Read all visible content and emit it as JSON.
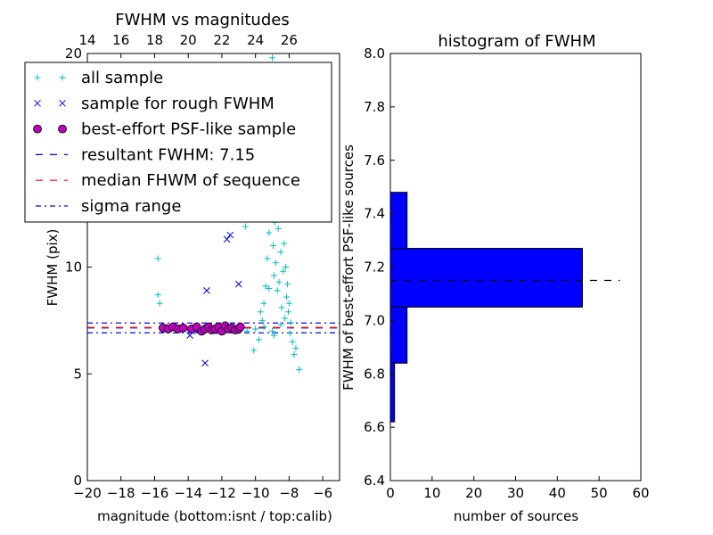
{
  "chart_data": [
    {
      "type": "scatter",
      "title": "FWHM vs magnitudes",
      "xlabel": "magnitude (bottom:isnt / top:calib)",
      "ylabel": "FWHM (pix)",
      "xlim": [
        -20,
        -5
      ],
      "ylim": [
        0,
        20
      ],
      "x_ticks": [
        -20,
        -18,
        -16,
        -14,
        -12,
        -10,
        -8,
        -6
      ],
      "x_tick_labels": [
        "−20",
        "−18",
        "−16",
        "−14",
        "−12",
        "−10",
        "−8",
        "−6"
      ],
      "y_ticks": [
        0,
        5,
        10,
        15,
        20
      ],
      "y_tick_labels": [
        "0",
        "5",
        "10",
        "15",
        "20"
      ],
      "top_axis": {
        "ticks": [
          14,
          16,
          18,
          20,
          22,
          24,
          26
        ],
        "tick_labels": [
          "14",
          "16",
          "18",
          "20",
          "22",
          "24",
          "26"
        ],
        "offset": 34
      },
      "grid": false,
      "legend_position": "upper-left",
      "legend": [
        {
          "label": "all sample",
          "marker": "plus",
          "color": "#00bfbf"
        },
        {
          "label": "sample for rough FWHM",
          "marker": "x",
          "color": "#0000ff"
        },
        {
          "label": "best-effort PSF-like sample",
          "marker": "circle",
          "color": "#bf00bf"
        },
        {
          "label": "resultant FWHM: 7.15",
          "marker": "dashed",
          "color": "#0000ff"
        },
        {
          "label": "median FHWM of sequence",
          "marker": "dashed",
          "color": "#ff0000"
        },
        {
          "label": "sigma range",
          "marker": "dashdot",
          "color": "#0000ff"
        }
      ],
      "hlines": [
        {
          "y": 7.15,
          "style": "dashed",
          "color": "#0000ff"
        },
        {
          "y": 7.17,
          "style": "dashed",
          "color": "#ff0000"
        },
        {
          "y": 7.38,
          "style": "dashdot",
          "color": "#0000ff"
        },
        {
          "y": 6.92,
          "style": "dashdot",
          "color": "#0000ff"
        }
      ],
      "series": [
        {
          "marker": "plus",
          "color": "#00bfbf",
          "points": [
            [
              -15.8,
              10.4
            ],
            [
              -15.8,
              8.7
            ],
            [
              -15.7,
              8.3
            ],
            [
              -15.3,
              7.2
            ],
            [
              -15.0,
              7.1
            ],
            [
              -14.8,
              7.2
            ],
            [
              -14.2,
              7.1
            ],
            [
              -13.5,
              7.0
            ],
            [
              -13.0,
              7.1
            ],
            [
              -12.5,
              7.0
            ],
            [
              -12.0,
              7.1
            ],
            [
              -11.5,
              7.2
            ],
            [
              -11.0,
              7.0
            ],
            [
              -10.5,
              7.0
            ],
            [
              -10.0,
              7.1
            ],
            [
              -9.5,
              7.2
            ],
            [
              -9.0,
              7.0
            ],
            [
              -10.1,
              6.1
            ],
            [
              -9.8,
              6.6
            ],
            [
              -9.6,
              7.5
            ],
            [
              -9.5,
              8.3
            ],
            [
              -9.4,
              9.1
            ],
            [
              -9.3,
              10.4
            ],
            [
              -9.2,
              11.6
            ],
            [
              -9.1,
              12.8
            ],
            [
              -9.0,
              13.6
            ],
            [
              -8.95,
              11.0
            ],
            [
              -8.9,
              9.6
            ],
            [
              -8.85,
              12.1
            ],
            [
              -8.8,
              10.2
            ],
            [
              -8.75,
              14.5
            ],
            [
              -8.7,
              8.9
            ],
            [
              -8.65,
              11.8
            ],
            [
              -8.6,
              9.3
            ],
            [
              -8.55,
              13.0
            ],
            [
              -8.5,
              10.7
            ],
            [
              -8.45,
              8.1
            ],
            [
              -8.4,
              12.4
            ],
            [
              -8.35,
              9.8
            ],
            [
              -8.3,
              11.1
            ],
            [
              -8.25,
              7.6
            ],
            [
              -8.2,
              10.0
            ],
            [
              -8.15,
              8.6
            ],
            [
              -8.1,
              9.2
            ],
            [
              -8.05,
              7.9
            ],
            [
              -8.0,
              8.3
            ],
            [
              -7.95,
              6.9
            ],
            [
              -7.9,
              7.4
            ],
            [
              -7.8,
              6.5
            ],
            [
              -7.7,
              5.9
            ],
            [
              -7.6,
              6.2
            ],
            [
              -7.4,
              5.2
            ],
            [
              -8.6,
              16.2
            ],
            [
              -8.8,
              15.4
            ],
            [
              -9.1,
              17.5
            ],
            [
              -8.4,
              16.9
            ],
            [
              -9.0,
              19.8
            ],
            [
              -8.9,
              18.3
            ],
            [
              -9.4,
              14.1
            ],
            [
              -8.3,
              13.3
            ],
            [
              -8.7,
              12.9
            ],
            [
              -9.2,
              9.0
            ],
            [
              -8.5,
              7.3
            ],
            [
              -8.9,
              6.8
            ],
            [
              -9.7,
              7.9
            ],
            [
              -10.4,
              14.9
            ],
            [
              -10.6,
              11.9
            ],
            [
              -11.0,
              12.4
            ],
            [
              -8.05,
              12.6
            ],
            [
              -8.15,
              14.2
            ],
            [
              -8.35,
              15.1
            ]
          ]
        },
        {
          "marker": "x",
          "color": "#0000ff",
          "points": [
            [
              -13.0,
              5.5
            ],
            [
              -12.9,
              8.9
            ],
            [
              -13.9,
              6.8
            ],
            [
              -12.0,
              12.4
            ],
            [
              -11.7,
              11.3
            ],
            [
              -11.5,
              11.5
            ],
            [
              -11.0,
              9.2
            ],
            [
              -14.5,
              7.1
            ],
            [
              -13.5,
              7.0
            ],
            [
              -12.5,
              7.0
            ]
          ]
        },
        {
          "marker": "circle",
          "color": "#bf00bf",
          "points": [
            [
              -15.5,
              7.15
            ],
            [
              -15.2,
              7.1
            ],
            [
              -14.9,
              7.2
            ],
            [
              -14.6,
              7.1
            ],
            [
              -14.3,
              7.15
            ],
            [
              -13.8,
              7.1
            ],
            [
              -13.5,
              7.2
            ],
            [
              -13.2,
              7.0
            ],
            [
              -13.0,
              7.1
            ],
            [
              -12.8,
              7.2
            ],
            [
              -12.6,
              7.05
            ],
            [
              -12.4,
              7.1
            ],
            [
              -12.2,
              7.2
            ],
            [
              -12.0,
              7.0
            ],
            [
              -11.8,
              7.25
            ],
            [
              -11.6,
              7.1
            ],
            [
              -11.4,
              7.15
            ],
            [
              -11.2,
              7.05
            ],
            [
              -11.0,
              7.1
            ],
            [
              -10.9,
              7.2
            ]
          ]
        }
      ]
    },
    {
      "type": "bar",
      "orientation": "horizontal",
      "title": "histogram of FWHM",
      "xlabel": "number of sources",
      "ylabel": "FWHM of best-effort PSF-like sources",
      "xlim": [
        0,
        60
      ],
      "ylim": [
        6.4,
        8.0
      ],
      "x_ticks": [
        0,
        10,
        20,
        30,
        40,
        50,
        60
      ],
      "x_tick_labels": [
        "0",
        "10",
        "20",
        "30",
        "40",
        "50",
        "60"
      ],
      "y_ticks": [
        6.4,
        6.6,
        6.8,
        7.0,
        7.2,
        7.4,
        7.6,
        7.8,
        8.0
      ],
      "y_tick_labels": [
        "6.4",
        "6.6",
        "6.8",
        "7.0",
        "7.2",
        "7.4",
        "7.6",
        "7.8",
        "8.0"
      ],
      "grid": false,
      "bar_color": "#0000ff",
      "bins": [
        {
          "from": 6.62,
          "to": 6.84,
          "count": 1
        },
        {
          "from": 6.84,
          "to": 7.05,
          "count": 4
        },
        {
          "from": 7.05,
          "to": 7.27,
          "count": 46
        },
        {
          "from": 7.27,
          "to": 7.48,
          "count": 4
        }
      ],
      "hline": {
        "y": 7.15,
        "x_end": 55,
        "style": "dashed",
        "color": "#000000"
      }
    }
  ]
}
